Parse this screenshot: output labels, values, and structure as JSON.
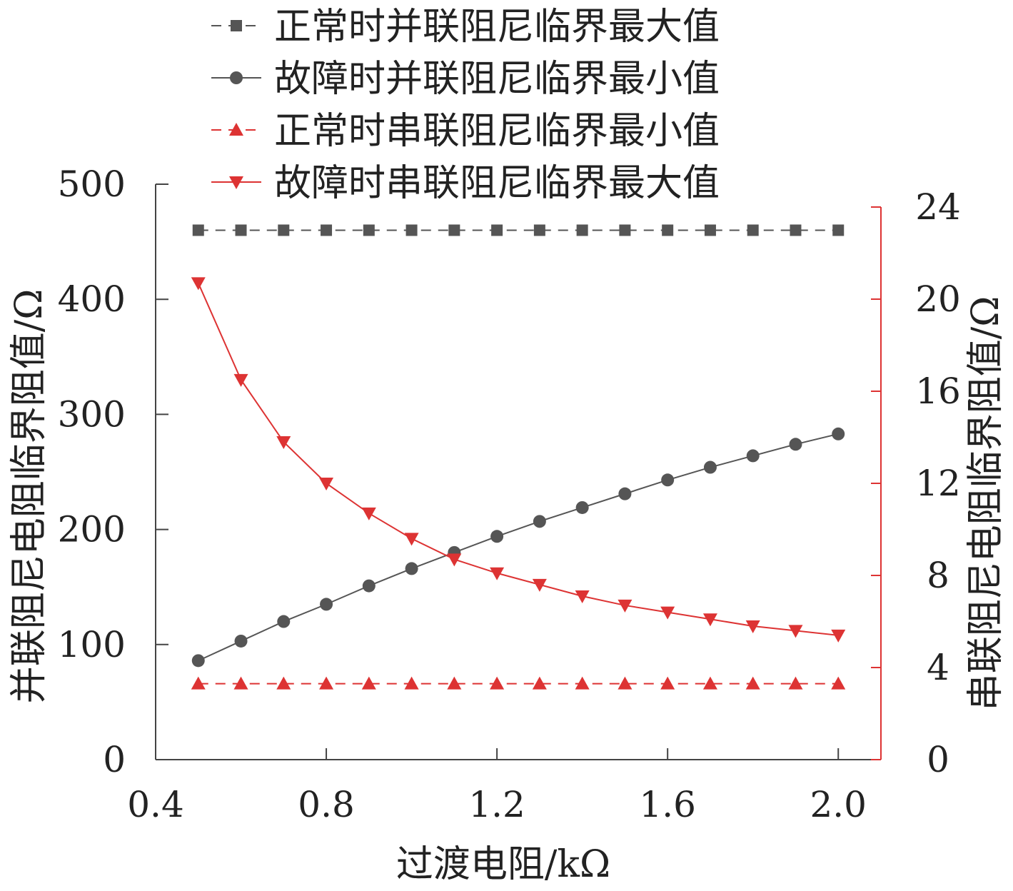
{
  "chart_data": {
    "type": "line",
    "xlabel": "过渡电阻/kΩ",
    "ylabel_left": "并联阻尼电阻临界阻值/Ω",
    "ylabel_right": "串联阻尼电阻临界阻值/Ω",
    "xlim": [
      0.4,
      2.1
    ],
    "xticks": [
      0.4,
      0.8,
      1.2,
      1.6,
      2.0
    ],
    "xtick_labels": [
      "0.4",
      "0.8",
      "1.2",
      "1.6",
      "2.0"
    ],
    "ylim_left": [
      0,
      500
    ],
    "yticks_left": [
      0,
      100,
      200,
      300,
      400,
      500
    ],
    "ylim_right": [
      0,
      24
    ],
    "yticks_right": [
      0,
      4,
      8,
      12,
      16,
      20,
      24
    ],
    "right_axis_color": "#dd3333",
    "grid": false,
    "legend_position": "top",
    "x": [
      0.5,
      0.6,
      0.7,
      0.8,
      0.9,
      1.0,
      1.1,
      1.2,
      1.3,
      1.4,
      1.5,
      1.6,
      1.7,
      1.8,
      1.9,
      2.0
    ],
    "series": [
      {
        "name": "正常时并联阻尼临界最大值",
        "axis": "left",
        "marker": "square",
        "line": "dashed",
        "color": "#555555",
        "values": [
          460,
          460,
          460,
          460,
          460,
          460,
          460,
          460,
          460,
          460,
          460,
          460,
          460,
          460,
          460,
          460
        ]
      },
      {
        "name": "故障时并联阻尼临界最小值",
        "axis": "left",
        "marker": "circle",
        "line": "solid",
        "color": "#555555",
        "values": [
          86,
          103,
          120,
          135,
          151,
          166,
          180,
          194,
          207,
          219,
          231,
          243,
          254,
          264,
          274,
          283
        ]
      },
      {
        "name": "正常时串联阻尼临界最小值",
        "axis": "right",
        "marker": "triangle-up",
        "line": "dashed",
        "color": "#dd3333",
        "values": [
          3.3,
          3.3,
          3.3,
          3.3,
          3.3,
          3.3,
          3.3,
          3.3,
          3.3,
          3.3,
          3.3,
          3.3,
          3.3,
          3.3,
          3.3,
          3.3
        ]
      },
      {
        "name": "故障时串联阻尼临界最大值",
        "axis": "right",
        "marker": "triangle-down",
        "line": "solid",
        "color": "#dd3333",
        "values": [
          20.7,
          16.5,
          13.8,
          12.0,
          10.7,
          9.6,
          8.7,
          8.1,
          7.6,
          7.1,
          6.7,
          6.4,
          6.1,
          5.8,
          5.6,
          5.4
        ]
      }
    ]
  }
}
